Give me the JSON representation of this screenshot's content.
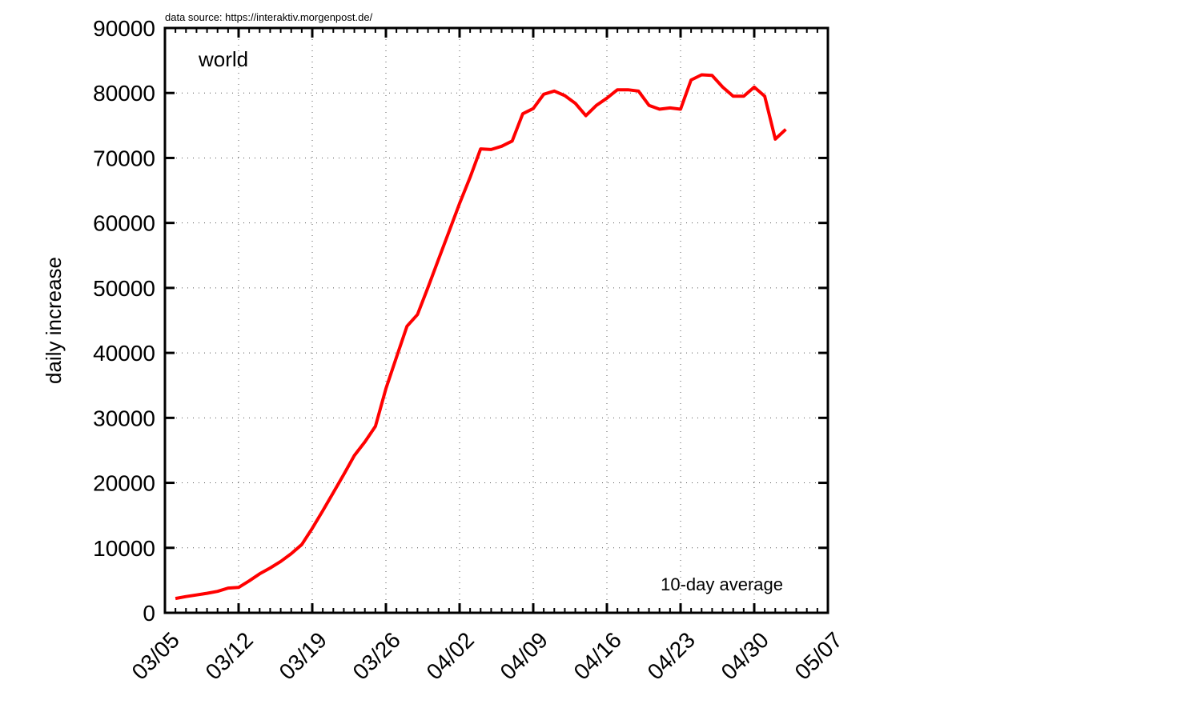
{
  "source_note": "data source: https://interaktiv.morgenpost.de/",
  "chart_data": {
    "type": "line",
    "title": "world",
    "annotation": "10-day average",
    "xlabel": "",
    "ylabel": "daily increase",
    "xlim": [
      "03/05",
      "05/07"
    ],
    "ylim": [
      0,
      90000
    ],
    "yticks": [
      0,
      10000,
      20000,
      30000,
      40000,
      50000,
      60000,
      70000,
      80000,
      90000
    ],
    "xticks": [
      "03/05",
      "03/12",
      "03/19",
      "03/26",
      "04/02",
      "04/09",
      "04/16",
      "04/23",
      "04/30",
      "05/07"
    ],
    "grid": true,
    "series": [
      {
        "color": "#ff0000",
        "points": [
          [
            "03/06",
            2200
          ],
          [
            "03/07",
            2500
          ],
          [
            "03/08",
            2750
          ],
          [
            "03/09",
            3000
          ],
          [
            "03/10",
            3300
          ],
          [
            "03/11",
            3800
          ],
          [
            "03/12",
            3900
          ],
          [
            "03/13",
            4900
          ],
          [
            "03/14",
            6000
          ],
          [
            "03/15",
            6900
          ],
          [
            "03/16",
            7900
          ],
          [
            "03/17",
            9100
          ],
          [
            "03/18",
            10500
          ],
          [
            "03/19",
            13000
          ],
          [
            "03/20",
            15700
          ],
          [
            "03/21",
            18500
          ],
          [
            "03/22",
            21300
          ],
          [
            "03/23",
            24200
          ],
          [
            "03/24",
            26300
          ],
          [
            "03/25",
            28700
          ],
          [
            "03/26",
            34500
          ],
          [
            "03/27",
            39300
          ],
          [
            "03/28",
            44100
          ],
          [
            "03/29",
            45900
          ],
          [
            "03/30",
            50100
          ],
          [
            "03/31",
            54400
          ],
          [
            "04/01",
            58700
          ],
          [
            "04/02",
            63000
          ],
          [
            "04/03",
            67000
          ],
          [
            "04/04",
            71400
          ],
          [
            "04/05",
            71300
          ],
          [
            "04/06",
            71800
          ],
          [
            "04/07",
            72600
          ],
          [
            "04/08",
            76800
          ],
          [
            "04/09",
            77600
          ],
          [
            "04/10",
            79800
          ],
          [
            "04/11",
            80300
          ],
          [
            "04/12",
            79600
          ],
          [
            "04/13",
            78400
          ],
          [
            "04/14",
            76500
          ],
          [
            "04/15",
            78100
          ],
          [
            "04/16",
            79200
          ],
          [
            "04/17",
            80500
          ],
          [
            "04/18",
            80500
          ],
          [
            "04/19",
            80300
          ],
          [
            "04/20",
            78100
          ],
          [
            "04/21",
            77500
          ],
          [
            "04/22",
            77700
          ],
          [
            "04/23",
            77500
          ],
          [
            "04/24",
            82000
          ],
          [
            "04/25",
            82800
          ],
          [
            "04/26",
            82700
          ],
          [
            "04/27",
            80900
          ],
          [
            "04/28",
            79500
          ],
          [
            "04/29",
            79500
          ],
          [
            "04/30",
            80900
          ],
          [
            "05/01",
            79500
          ],
          [
            "05/02",
            72900
          ],
          [
            "05/03",
            74400
          ]
        ]
      }
    ]
  }
}
